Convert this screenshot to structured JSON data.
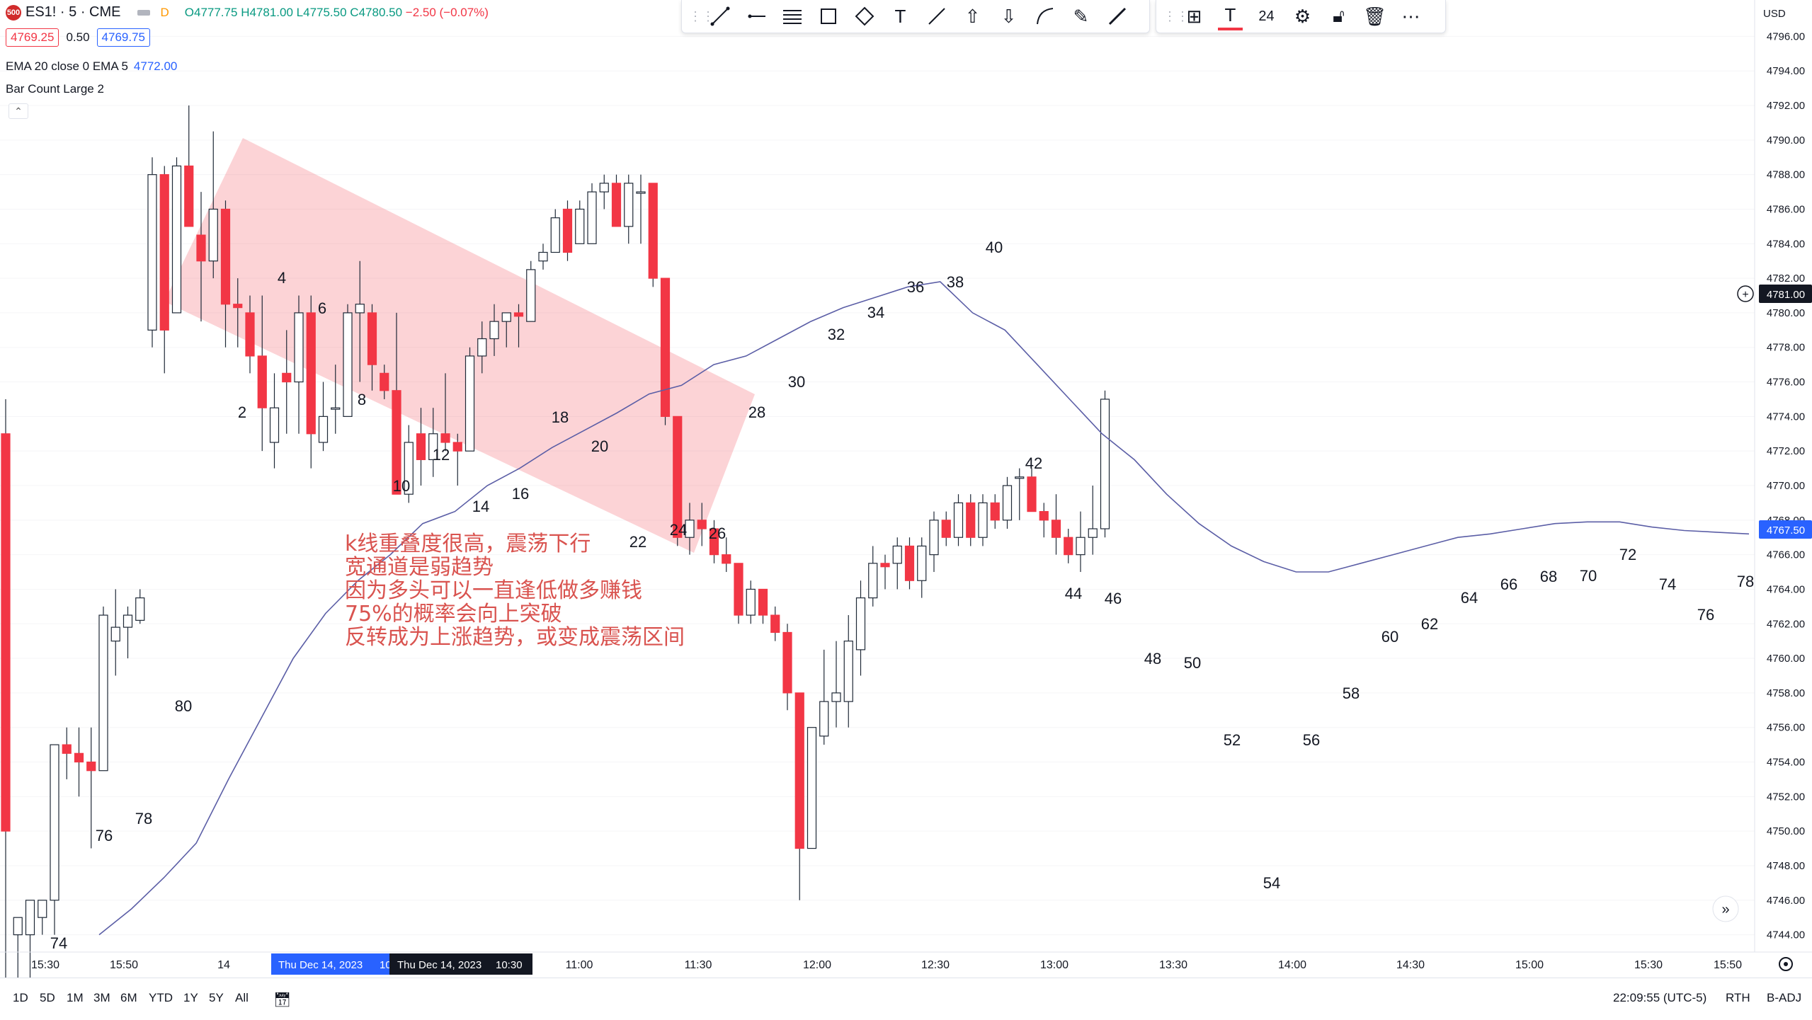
{
  "symbol": {
    "badge": "500",
    "name": "ES1! · 5 · CME",
    "flag": "D"
  },
  "ohlc": {
    "o": "O4777.75",
    "h": "H4781.00",
    "l": "L4775.50",
    "c": "C4780.50",
    "chg": "−2.50 (−0.07%)"
  },
  "prices": {
    "bid": "4769.25",
    "spread": "0.50",
    "ask": "4769.75"
  },
  "indicators": [
    {
      "label": "EMA 20 close 0 EMA 5",
      "value": "4772.00"
    },
    {
      "label": "Bar Count Large 2",
      "value": ""
    }
  ],
  "currency": "USD",
  "price_axis": {
    "labels": [
      "4796.00",
      "4794.00",
      "4792.00",
      "4790.00",
      "4788.00",
      "4786.00",
      "4784.00",
      "4782.00",
      "4780.00",
      "4778.00",
      "4776.00",
      "4774.00",
      "4772.00",
      "4770.00",
      "4768.00",
      "4766.00",
      "4764.00",
      "4762.00",
      "4760.00",
      "4758.00",
      "4756.00",
      "4754.00",
      "4752.00",
      "4750.00",
      "4748.00",
      "4746.00",
      "4744.00"
    ],
    "crosshair_label": "4781.00",
    "last_price_label": "4767.50"
  },
  "time_axis": {
    "labels": [
      "15:30",
      "15:50",
      "14",
      "11:00",
      "11:30",
      "12:00",
      "12:30",
      "13:00",
      "13:30",
      "14:00",
      "14:30",
      "15:00",
      "15:30",
      "15:50"
    ],
    "highlight_1": "Thu Dec 14, 2023",
    "highlight_1_tail": "10",
    "highlight_2": "Thu Dec 14, 2023",
    "highlight_2_time": "10:30"
  },
  "toolbar_font_size": "24",
  "annotation_lines": [
    "k线重叠度很高，震荡下行",
    "宽通道是弱趋势",
    "因为多头可以一直逢低做多赚钱",
    "75%的概率会向上突破",
    "反转成为上涨趋势，或变成震荡区间"
  ],
  "bar_counts": [
    "2",
    "4",
    "6",
    "8",
    "10",
    "12",
    "14",
    "16",
    "18",
    "20",
    "22",
    "24",
    "26",
    "28",
    "30",
    "32",
    "34",
    "36",
    "38",
    "40",
    "42",
    "44",
    "46",
    "48",
    "50",
    "52",
    "54",
    "56",
    "58",
    "60",
    "62",
    "64",
    "66",
    "68",
    "70",
    "72",
    "74",
    "76",
    "78",
    "76",
    "78",
    "80",
    "74"
  ],
  "ranges": [
    "1D",
    "5D",
    "1M",
    "3M",
    "6M",
    "YTD",
    "1Y",
    "5Y",
    "All"
  ],
  "status": {
    "time": "22:09:55 (UTC-5)",
    "session": "RTH",
    "adj": "B-ADJ"
  },
  "colors": {
    "up": "#ffffff",
    "up_border": "#1f2937",
    "down": "#f23645",
    "ema": "#5b5ea6",
    "channel": "rgba(242,54,69,0.22)",
    "annotation": "#d9534f"
  },
  "chart_data": {
    "type": "candlestick",
    "price_range": [
      4743,
      4797
    ],
    "candles": [
      {
        "o": 4773.0,
        "h": 4775.0,
        "l": 4740.0,
        "c": 4750.0
      },
      {
        "o": 4744.0,
        "h": 4745.0,
        "l": 4741.0,
        "c": 4745.0
      },
      {
        "o": 4744.0,
        "h": 4746.0,
        "l": 4741.0,
        "c": 4746.0
      },
      {
        "o": 4745.0,
        "h": 4746.0,
        "l": 4744.0,
        "c": 4746.0
      },
      {
        "o": 4746.0,
        "h": 4755.0,
        "l": 4744.0,
        "c": 4755.0
      },
      {
        "o": 4755.0,
        "h": 4756.0,
        "l": 4753.0,
        "c": 4754.5
      },
      {
        "o": 4754.5,
        "h": 4756.0,
        "l": 4752.0,
        "c": 4754.0
      },
      {
        "o": 4754.0,
        "h": 4756.0,
        "l": 4749.0,
        "c": 4753.5
      },
      {
        "o": 4753.5,
        "h": 4763.0,
        "l": 4753.5,
        "c": 4762.5
      },
      {
        "o": 4761.0,
        "h": 4764.0,
        "l": 4759.0,
        "c": 4761.8
      },
      {
        "o": 4761.8,
        "h": 4763.0,
        "l": 4760.0,
        "c": 4762.5
      },
      {
        "o": 4762.2,
        "h": 4764.0,
        "l": 4762.0,
        "c": 4763.5
      },
      {
        "o": 4779.0,
        "h": 4789.0,
        "l": 4778.0,
        "c": 4788.0
      },
      {
        "o": 4788.0,
        "h": 4788.5,
        "l": 4776.5,
        "c": 4779.0
      },
      {
        "o": 4780.0,
        "h": 4789.0,
        "l": 4780.0,
        "c": 4788.5
      },
      {
        "o": 4788.5,
        "h": 4792.0,
        "l": 4785.0,
        "c": 4785.0
      },
      {
        "o": 4784.5,
        "h": 4787.0,
        "l": 4779.5,
        "c": 4783.0
      },
      {
        "o": 4783.0,
        "h": 4790.5,
        "l": 4782.0,
        "c": 4786.0
      },
      {
        "o": 4786.0,
        "h": 4786.5,
        "l": 4778.0,
        "c": 4780.5
      },
      {
        "o": 4780.5,
        "h": 4782.0,
        "l": 4778.0,
        "c": 4780.3
      },
      {
        "o": 4780.0,
        "h": 4781.0,
        "l": 4776.5,
        "c": 4777.5
      },
      {
        "o": 4777.5,
        "h": 4781.0,
        "l": 4772.0,
        "c": 4774.5
      },
      {
        "o": 4772.5,
        "h": 4776.5,
        "l": 4771.0,
        "c": 4774.5
      },
      {
        "o": 4776.5,
        "h": 4779.0,
        "l": 4773.0,
        "c": 4776.0
      },
      {
        "o": 4776.0,
        "h": 4781.0,
        "l": 4773.0,
        "c": 4780.0
      },
      {
        "o": 4780.0,
        "h": 4781.0,
        "l": 4771.0,
        "c": 4773.0
      },
      {
        "o": 4772.5,
        "h": 4776.0,
        "l": 4772.0,
        "c": 4774.0
      },
      {
        "o": 4774.5,
        "h": 4777.0,
        "l": 4773.0,
        "c": 4774.5
      },
      {
        "o": 4774.0,
        "h": 4780.5,
        "l": 4774.0,
        "c": 4780.0
      },
      {
        "o": 4780.0,
        "h": 4783.0,
        "l": 4776.0,
        "c": 4780.5
      },
      {
        "o": 4780.0,
        "h": 4780.5,
        "l": 4775.5,
        "c": 4777.0
      },
      {
        "o": 4776.5,
        "h": 4777.0,
        "l": 4775.0,
        "c": 4775.5
      },
      {
        "o": 4775.5,
        "h": 4780.0,
        "l": 4769.5,
        "c": 4769.5
      },
      {
        "o": 4769.5,
        "h": 4773.5,
        "l": 4769.0,
        "c": 4772.5
      },
      {
        "o": 4773.0,
        "h": 4774.5,
        "l": 4770.0,
        "c": 4771.5
      },
      {
        "o": 4771.5,
        "h": 4774.5,
        "l": 4770.5,
        "c": 4773.0
      },
      {
        "o": 4773.0,
        "h": 4776.5,
        "l": 4772.0,
        "c": 4772.5
      },
      {
        "o": 4772.5,
        "h": 4773.0,
        "l": 4770.0,
        "c": 4772.0
      },
      {
        "o": 4772.0,
        "h": 4778.0,
        "l": 4772.0,
        "c": 4777.5
      },
      {
        "o": 4777.5,
        "h": 4779.5,
        "l": 4776.5,
        "c": 4778.5
      },
      {
        "o": 4778.5,
        "h": 4780.5,
        "l": 4777.5,
        "c": 4779.5
      },
      {
        "o": 4779.5,
        "h": 4780.0,
        "l": 4778.0,
        "c": 4780.0
      },
      {
        "o": 4780.0,
        "h": 4780.5,
        "l": 4778.0,
        "c": 4779.8
      },
      {
        "o": 4779.5,
        "h": 4783.0,
        "l": 4779.5,
        "c": 4782.5
      },
      {
        "o": 4783.0,
        "h": 4784.0,
        "l": 4782.5,
        "c": 4783.5
      },
      {
        "o": 4783.5,
        "h": 4786.0,
        "l": 4783.5,
        "c": 4785.5
      },
      {
        "o": 4786.0,
        "h": 4786.5,
        "l": 4783.0,
        "c": 4783.5
      },
      {
        "o": 4784.0,
        "h": 4786.5,
        "l": 4784.0,
        "c": 4786.0
      },
      {
        "o": 4784.0,
        "h": 4787.5,
        "l": 4784.0,
        "c": 4787.0
      },
      {
        "o": 4787.0,
        "h": 4788.0,
        "l": 4786.0,
        "c": 4787.5
      },
      {
        "o": 4787.5,
        "h": 4788.0,
        "l": 4785.0,
        "c": 4785.0
      },
      {
        "o": 4785.0,
        "h": 4788.0,
        "l": 4784.0,
        "c": 4787.5
      },
      {
        "o": 4787.0,
        "h": 4788.0,
        "l": 4784.0,
        "c": 4787.0
      },
      {
        "o": 4787.5,
        "h": 4787.5,
        "l": 4781.5,
        "c": 4782.0
      },
      {
        "o": 4782.0,
        "h": 4782.0,
        "l": 4773.5,
        "c": 4774.0
      },
      {
        "o": 4774.0,
        "h": 4774.0,
        "l": 4766.5,
        "c": 4767.0
      },
      {
        "o": 4767.0,
        "h": 4769.0,
        "l": 4766.0,
        "c": 4768.0
      },
      {
        "o": 4768.0,
        "h": 4769.0,
        "l": 4766.5,
        "c": 4767.5
      },
      {
        "o": 4767.5,
        "h": 4768.0,
        "l": 4765.5,
        "c": 4766.0
      },
      {
        "o": 4766.0,
        "h": 4767.0,
        "l": 4765.0,
        "c": 4765.5
      },
      {
        "o": 4765.5,
        "h": 4765.5,
        "l": 4762.0,
        "c": 4762.5
      },
      {
        "o": 4762.5,
        "h": 4764.5,
        "l": 4762.0,
        "c": 4764.0
      },
      {
        "o": 4764.0,
        "h": 4764.0,
        "l": 4762.0,
        "c": 4762.5
      },
      {
        "o": 4762.5,
        "h": 4763.0,
        "l": 4761.0,
        "c": 4761.5
      },
      {
        "o": 4761.5,
        "h": 4762.0,
        "l": 4757.0,
        "c": 4758.0
      },
      {
        "o": 4758.0,
        "h": 4758.0,
        "l": 4746.0,
        "c": 4749.0
      },
      {
        "o": 4749.0,
        "h": 4756.0,
        "l": 4749.0,
        "c": 4756.0
      },
      {
        "o": 4755.5,
        "h": 4760.5,
        "l": 4755.0,
        "c": 4757.5
      },
      {
        "o": 4757.5,
        "h": 4761.0,
        "l": 4756.0,
        "c": 4758.0
      },
      {
        "o": 4757.5,
        "h": 4762.5,
        "l": 4756.0,
        "c": 4761.0
      },
      {
        "o": 4760.5,
        "h": 4764.5,
        "l": 4759.0,
        "c": 4763.5
      },
      {
        "o": 4763.5,
        "h": 4766.5,
        "l": 4763.0,
        "c": 4765.5
      },
      {
        "o": 4765.5,
        "h": 4766.0,
        "l": 4764.0,
        "c": 4765.3
      },
      {
        "o": 4765.5,
        "h": 4767.0,
        "l": 4764.0,
        "c": 4766.5
      },
      {
        "o": 4766.5,
        "h": 4767.0,
        "l": 4764.0,
        "c": 4764.5
      },
      {
        "o": 4764.5,
        "h": 4767.0,
        "l": 4763.5,
        "c": 4766.5
      },
      {
        "o": 4766.0,
        "h": 4768.5,
        "l": 4765.0,
        "c": 4768.0
      },
      {
        "o": 4768.0,
        "h": 4768.5,
        "l": 4766.5,
        "c": 4767.0
      },
      {
        "o": 4767.0,
        "h": 4769.5,
        "l": 4766.5,
        "c": 4769.0
      },
      {
        "o": 4769.0,
        "h": 4769.5,
        "l": 4766.5,
        "c": 4767.0
      },
      {
        "o": 4767.0,
        "h": 4769.5,
        "l": 4766.5,
        "c": 4769.0
      },
      {
        "o": 4769.0,
        "h": 4769.5,
        "l": 4767.5,
        "c": 4768.0
      },
      {
        "o": 4768.0,
        "h": 4770.5,
        "l": 4767.5,
        "c": 4770.0
      },
      {
        "o": 4770.5,
        "h": 4771.0,
        "l": 4768.0,
        "c": 4770.5
      },
      {
        "o": 4770.5,
        "h": 4771.0,
        "l": 4768.5,
        "c": 4768.5
      },
      {
        "o": 4768.5,
        "h": 4769.0,
        "l": 4767.0,
        "c": 4768.0
      },
      {
        "o": 4768.0,
        "h": 4769.5,
        "l": 4766.0,
        "c": 4767.0
      },
      {
        "o": 4767.0,
        "h": 4767.5,
        "l": 4765.5,
        "c": 4766.0
      },
      {
        "o": 4766.0,
        "h": 4768.5,
        "l": 4765.0,
        "c": 4767.0
      },
      {
        "o": 4767.0,
        "h": 4770.0,
        "l": 4766.0,
        "c": 4767.5
      },
      {
        "o": 4767.5,
        "h": 4775.5,
        "l": 4767.0,
        "c": 4775.0
      }
    ],
    "ema": [
      4744,
      4745.5,
      4747.3,
      4749.3,
      4753.0,
      4756.5,
      4760.0,
      4762.6,
      4764.5,
      4766.0,
      4767.8,
      4768.5,
      4770.0,
      4771.0,
      4772.2,
      4773.2,
      4774.2,
      4775.3,
      4775.8,
      4777.0,
      4777.5,
      4778.5,
      4779.5,
      4780.3,
      4780.9,
      4781.5,
      4781.8,
      4780.0,
      4779.0,
      4777.0,
      4775.0,
      4773.0,
      4771.5,
      4769.5,
      4767.8,
      4766.5,
      4765.6,
      4765.0,
      4765.0,
      4765.5,
      4766.0,
      4766.5,
      4767.0,
      4767.2,
      4767.5,
      4767.8,
      4767.9,
      4767.9,
      4767.6,
      4767.4,
      4767.3,
      4767.2
    ],
    "ema_breaks": []
  }
}
